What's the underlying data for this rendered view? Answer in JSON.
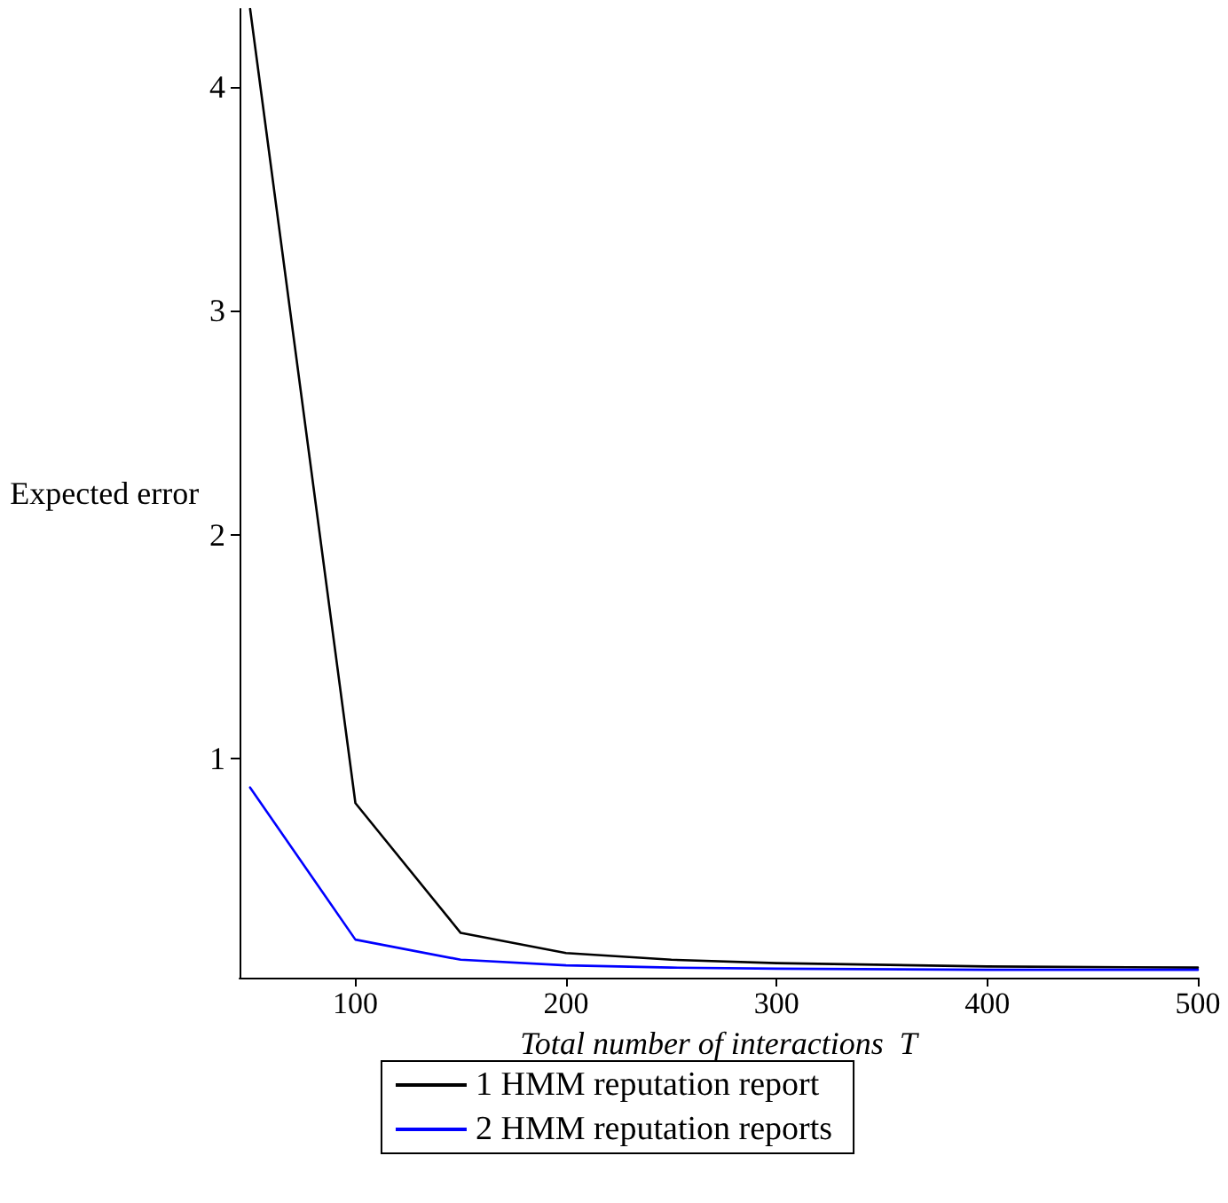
{
  "chart_data": {
    "type": "line",
    "xlabel": "Total number of interactions  T",
    "ylabel": "Expected error",
    "x": [
      50,
      100,
      150,
      200,
      250,
      300,
      400,
      500
    ],
    "series": [
      {
        "name": "1 HMM reputation report",
        "color": "#000000",
        "values": [
          4.35,
          0.8,
          0.22,
          0.13,
          0.1,
          0.085,
          0.07,
          0.065
        ]
      },
      {
        "name": "2 HMM reputation reports",
        "color": "#0000ff",
        "values": [
          0.87,
          0.19,
          0.1,
          0.075,
          0.065,
          0.06,
          0.055,
          0.055
        ]
      }
    ],
    "xlim": [
      45,
      500
    ],
    "xticks": [
      100,
      200,
      300,
      400,
      500
    ],
    "ylim": [
      0.02,
      4.35
    ],
    "yticks": [
      1,
      2,
      3,
      4
    ],
    "grid": false,
    "legend": "bottom",
    "marker": "none",
    "line_style": "solid"
  }
}
